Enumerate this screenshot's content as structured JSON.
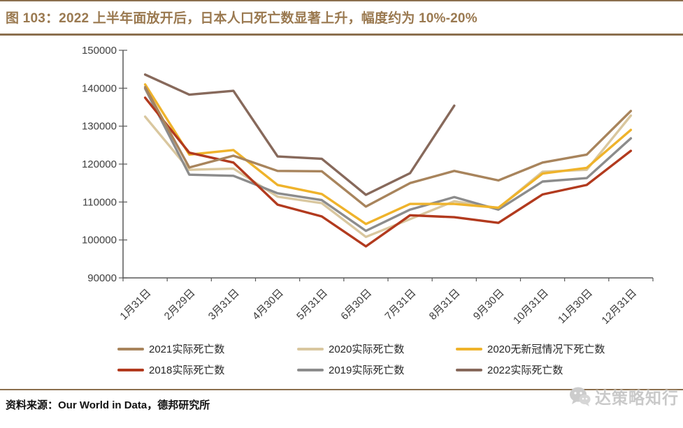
{
  "figure": {
    "title": "图 103：2022 上半年面放开后，日本人口死亡数显著上升，幅度约为 10%-20%",
    "source_note": "资料来源：Our World in Data，德邦研究所",
    "watermark_text": "达策略知行",
    "accent_color": "#8B6F4E",
    "title_color": "#9A7950"
  },
  "chart_data": {
    "type": "line",
    "title": "",
    "xlabel": "",
    "ylabel": "",
    "grid": false,
    "legend_position": "bottom",
    "ylim": [
      90000,
      150000
    ],
    "y_tick_step": 10000,
    "y_tick_labels": [
      "90000",
      "100000",
      "110000",
      "120000",
      "130000",
      "140000",
      "150000"
    ],
    "categories": [
      "1月31日",
      "2月29日",
      "3月31日",
      "4月30日",
      "5月31日",
      "6月30日",
      "7月31日",
      "8月31日",
      "9月30日",
      "10月31日",
      "11月30日",
      "12月31日"
    ],
    "series": [
      {
        "name": "2021实际死亡数",
        "color": "#A8845C",
        "values": [
          140300,
          119100,
          122200,
          118200,
          118100,
          108800,
          115000,
          118200,
          115700,
          120400,
          122500,
          134000
        ]
      },
      {
        "name": "2020实际死亡数",
        "color": "#D9C79F",
        "values": [
          132500,
          118500,
          118800,
          111400,
          109700,
          100800,
          105500,
          110200,
          108400,
          118000,
          118500,
          132800
        ]
      },
      {
        "name": "2020无新冠情况下死亡数",
        "color": "#EFB32B",
        "values": [
          141000,
          122500,
          123700,
          114500,
          112100,
          104200,
          109500,
          109500,
          108500,
          117500,
          119000,
          129000
        ]
      },
      {
        "name": "2018实际死亡数",
        "color": "#B23A1E",
        "values": [
          137500,
          123000,
          120400,
          109300,
          106200,
          98300,
          106500,
          106000,
          104500,
          112000,
          114500,
          123500
        ]
      },
      {
        "name": "2019实际死亡数",
        "color": "#8C8C8C",
        "values": [
          139900,
          117200,
          116900,
          112300,
          110500,
          102400,
          108000,
          111300,
          108000,
          115400,
          116300,
          126800
        ]
      },
      {
        "name": "2022实际死亡数",
        "color": "#87695B",
        "values": [
          143600,
          138300,
          139300,
          122000,
          121400,
          111900,
          117600,
          135400,
          null,
          null,
          null,
          null
        ]
      }
    ]
  }
}
